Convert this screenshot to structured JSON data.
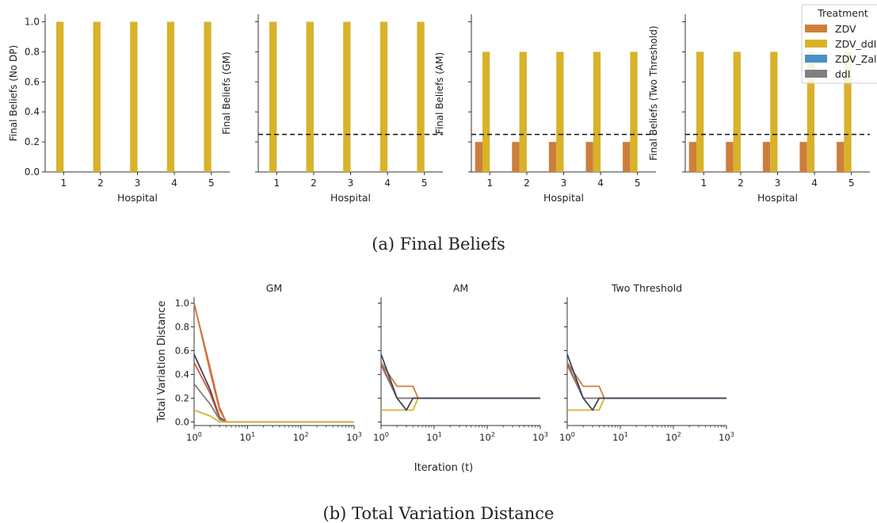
{
  "colors": {
    "ZDV": "#cd7e3b",
    "ZDV_ddI": "#d8b22a",
    "ZDV_Zal": "#4891c9",
    "ddI": "#7f7f7f",
    "line_red": "#d6523a",
    "line_dark": "#3c4458",
    "threshold": "#111111"
  },
  "captions": {
    "a": "(a) Final Beliefs",
    "b": "(b) Total Variation Distance"
  },
  "legend": {
    "title": "Treatment",
    "items": [
      {
        "label": "ZDV",
        "color": "#cd7e3b"
      },
      {
        "label": "ZDV_ddI",
        "color": "#d8b22a"
      },
      {
        "label": "ZDV_Zal",
        "color": "#4891c9"
      },
      {
        "label": "ddI",
        "color": "#7f7f7f"
      }
    ]
  },
  "chart_data": [
    {
      "type": "bar",
      "id": "no-dp",
      "xlabel": "Hospital",
      "ylabel": "Final Beliefs (No DP)",
      "categories": [
        "1",
        "2",
        "3",
        "4",
        "5"
      ],
      "ylim": [
        0,
        1.05
      ],
      "yticks": [
        0.0,
        0.2,
        0.4,
        0.6,
        0.8,
        1.0
      ],
      "ytick_labels": [
        "0.0",
        "0.2",
        "0.4",
        "0.6",
        "0.8",
        "1.0"
      ],
      "series": [
        {
          "name": "ZDV",
          "values": [
            0,
            0,
            0,
            0,
            0
          ]
        },
        {
          "name": "ZDV_ddI",
          "values": [
            1.0,
            1.0,
            1.0,
            1.0,
            1.0
          ]
        },
        {
          "name": "ZDV_Zal",
          "values": [
            0,
            0,
            0,
            0,
            0
          ]
        },
        {
          "name": "ddI",
          "values": [
            0,
            0,
            0,
            0,
            0
          ]
        }
      ]
    },
    {
      "type": "bar",
      "id": "gm",
      "xlabel": "Hospital",
      "ylabel": "Final Beliefs (GM)",
      "categories": [
        "1",
        "2",
        "3",
        "4",
        "5"
      ],
      "ylim": [
        0,
        1.05
      ],
      "threshold": 0.25,
      "yticks": [
        0.0,
        0.2,
        0.4,
        0.6,
        0.8,
        1.0
      ],
      "series": [
        {
          "name": "ZDV",
          "values": [
            0,
            0,
            0,
            0,
            0
          ]
        },
        {
          "name": "ZDV_ddI",
          "values": [
            1.0,
            1.0,
            1.0,
            1.0,
            1.0
          ]
        },
        {
          "name": "ZDV_Zal",
          "values": [
            0,
            0,
            0,
            0,
            0
          ]
        },
        {
          "name": "ddI",
          "values": [
            0,
            0,
            0,
            0,
            0
          ]
        }
      ]
    },
    {
      "type": "bar",
      "id": "am",
      "xlabel": "Hospital",
      "ylabel": "Final Beliefs (AM)",
      "categories": [
        "1",
        "2",
        "3",
        "4",
        "5"
      ],
      "ylim": [
        0,
        1.05
      ],
      "threshold": 0.25,
      "yticks": [
        0.0,
        0.2,
        0.4,
        0.6,
        0.8,
        1.0
      ],
      "series": [
        {
          "name": "ZDV",
          "values": [
            0.2,
            0.2,
            0.2,
            0.2,
            0.2
          ]
        },
        {
          "name": "ZDV_ddI",
          "values": [
            0.8,
            0.8,
            0.8,
            0.8,
            0.8
          ]
        },
        {
          "name": "ZDV_Zal",
          "values": [
            0,
            0,
            0,
            0,
            0
          ]
        },
        {
          "name": "ddI",
          "values": [
            0,
            0,
            0,
            0,
            0
          ]
        }
      ]
    },
    {
      "type": "bar",
      "id": "two-threshold",
      "xlabel": "Hospital",
      "ylabel": "Final Beliefs (Two Threshold)",
      "categories": [
        "1",
        "2",
        "3",
        "4",
        "5"
      ],
      "ylim": [
        0,
        1.05
      ],
      "threshold": 0.25,
      "yticks": [
        0.0,
        0.2,
        0.4,
        0.6,
        0.8,
        1.0
      ],
      "series": [
        {
          "name": "ZDV",
          "values": [
            0.2,
            0.2,
            0.2,
            0.2,
            0.2
          ]
        },
        {
          "name": "ZDV_ddI",
          "values": [
            0.8,
            0.8,
            0.8,
            0.8,
            0.8
          ]
        },
        {
          "name": "ZDV_Zal",
          "values": [
            0,
            0,
            0,
            0,
            0
          ]
        },
        {
          "name": "ddI",
          "values": [
            0,
            0,
            0,
            0,
            0
          ]
        }
      ]
    },
    {
      "type": "line",
      "id": "tvd-gm",
      "title": "GM",
      "ylabel": "Total Variation Distance",
      "xlabel": "Iteration (t)",
      "xscale": "log",
      "xlim": [
        1,
        1000
      ],
      "ylim": [
        -0.03,
        1.05
      ],
      "xtick_labels": [
        "10",
        "10",
        "10",
        "10"
      ],
      "xtick_exponents": [
        "0",
        "1",
        "2",
        "3"
      ],
      "yticks": [
        0.0,
        0.2,
        0.4,
        0.6,
        0.8,
        1.0
      ],
      "ytick_labels": [
        "0.0",
        "0.2",
        "0.4",
        "0.6",
        "0.8",
        "1.0"
      ],
      "series": [
        {
          "color": "line_red",
          "x": [
            1,
            2,
            3,
            4,
            1000
          ],
          "y": [
            1.0,
            0.45,
            0.12,
            0.0,
            0.0
          ]
        },
        {
          "color": "ZDV",
          "x": [
            1,
            2,
            3,
            4,
            1000
          ],
          "y": [
            1.0,
            0.42,
            0.1,
            0.0,
            0.0
          ]
        },
        {
          "color": "line_dark",
          "x": [
            1,
            2,
            3,
            4,
            1000
          ],
          "y": [
            0.57,
            0.27,
            0.04,
            0.0,
            0.0
          ]
        },
        {
          "color": "line_red",
          "x": [
            1,
            2,
            3,
            4,
            1000
          ],
          "y": [
            0.5,
            0.24,
            0.03,
            0.0,
            0.0
          ]
        },
        {
          "color": "ddI",
          "x": [
            1,
            2,
            3,
            4,
            1000
          ],
          "y": [
            0.32,
            0.15,
            0.02,
            0.0,
            0.0
          ]
        },
        {
          "color": "ZDV_ddI",
          "x": [
            1,
            2,
            3,
            4,
            1000
          ],
          "y": [
            0.1,
            0.05,
            0.0,
            0.0,
            0.0
          ]
        }
      ]
    },
    {
      "type": "line",
      "id": "tvd-am",
      "title": "AM",
      "xscale": "log",
      "xlim": [
        1,
        1000
      ],
      "ylim": [
        -0.03,
        1.05
      ],
      "xtick_labels": [
        "10",
        "10",
        "10",
        "10"
      ],
      "xtick_exponents": [
        "0",
        "1",
        "2",
        "3"
      ],
      "series": [
        {
          "color": "ZDV_ddI",
          "x": [
            1,
            2,
            3,
            4,
            5,
            1000
          ],
          "y": [
            0.1,
            0.1,
            0.1,
            0.1,
            0.2,
            0.2
          ]
        },
        {
          "color": "ZDV",
          "x": [
            1,
            2,
            3,
            4,
            5,
            1000
          ],
          "y": [
            0.5,
            0.3,
            0.3,
            0.3,
            0.2,
            0.2
          ]
        },
        {
          "color": "line_red",
          "x": [
            1,
            2,
            3,
            4,
            1000
          ],
          "y": [
            0.48,
            0.2,
            0.2,
            0.2,
            0.2
          ]
        },
        {
          "color": "ddI",
          "x": [
            1,
            2,
            3,
            4,
            1000
          ],
          "y": [
            0.5,
            0.2,
            0.2,
            0.2,
            0.2
          ]
        },
        {
          "color": "line_dark",
          "x": [
            1,
            2,
            3,
            4,
            1000
          ],
          "y": [
            0.57,
            0.2,
            0.1,
            0.2,
            0.2
          ]
        }
      ]
    },
    {
      "type": "line",
      "id": "tvd-two",
      "title": "Two Threshold",
      "xscale": "log",
      "xlim": [
        1,
        1000
      ],
      "ylim": [
        -0.03,
        1.05
      ],
      "xtick_labels": [
        "10",
        "10",
        "10",
        "10"
      ],
      "xtick_exponents": [
        "0",
        "1",
        "2",
        "3"
      ],
      "series": [
        {
          "color": "ZDV_ddI",
          "x": [
            1,
            2,
            3,
            4,
            5,
            1000
          ],
          "y": [
            0.1,
            0.1,
            0.1,
            0.1,
            0.2,
            0.2
          ]
        },
        {
          "color": "ZDV",
          "x": [
            1,
            2,
            3,
            4,
            5,
            1000
          ],
          "y": [
            0.5,
            0.3,
            0.3,
            0.3,
            0.2,
            0.2
          ]
        },
        {
          "color": "line_red",
          "x": [
            1,
            2,
            3,
            4,
            1000
          ],
          "y": [
            0.48,
            0.2,
            0.2,
            0.2,
            0.2
          ]
        },
        {
          "color": "ddI",
          "x": [
            1,
            2,
            3,
            4,
            1000
          ],
          "y": [
            0.5,
            0.2,
            0.2,
            0.2,
            0.2
          ]
        },
        {
          "color": "line_dark",
          "x": [
            1,
            2,
            3,
            4,
            1000
          ],
          "y": [
            0.57,
            0.2,
            0.1,
            0.2,
            0.2
          ]
        }
      ]
    }
  ]
}
